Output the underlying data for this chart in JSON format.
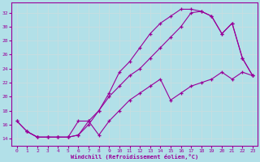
{
  "xlabel": "Windchill (Refroidissement éolien,°C)",
  "bg_color": "#b2e0e8",
  "grid_color": "#c8dde0",
  "line_color": "#990099",
  "xlim": [
    -0.5,
    23.5
  ],
  "ylim": [
    13.0,
    33.5
  ],
  "xticks": [
    0,
    1,
    2,
    3,
    4,
    5,
    6,
    7,
    8,
    9,
    10,
    11,
    12,
    13,
    14,
    15,
    16,
    17,
    18,
    19,
    20,
    21,
    22,
    23
  ],
  "yticks": [
    14,
    16,
    18,
    20,
    22,
    24,
    26,
    28,
    30,
    32
  ],
  "line1_x": [
    0,
    1,
    2,
    3,
    4,
    5,
    6,
    7,
    8,
    9,
    10,
    11,
    12,
    13,
    14,
    15,
    16,
    17,
    18,
    19,
    20,
    21,
    22,
    23
  ],
  "line1_y": [
    16.5,
    15.0,
    14.2,
    14.2,
    14.2,
    14.2,
    16.5,
    16.5,
    18.0,
    20.5,
    23.5,
    25.0,
    27.0,
    29.0,
    30.5,
    31.5,
    32.5,
    32.5,
    32.2,
    31.5,
    29.0,
    30.5,
    25.5,
    23.0
  ],
  "line2_x": [
    0,
    1,
    2,
    3,
    4,
    5,
    6,
    7,
    8,
    9,
    10,
    11,
    12,
    13,
    14,
    15,
    16,
    17,
    18,
    19,
    20,
    21,
    22,
    23
  ],
  "line2_y": [
    16.5,
    15.0,
    14.2,
    14.2,
    14.2,
    14.2,
    14.5,
    16.0,
    18.0,
    20.0,
    21.5,
    23.0,
    24.0,
    25.5,
    27.0,
    28.5,
    30.0,
    32.0,
    32.2,
    31.5,
    29.0,
    30.5,
    25.5,
    23.0
  ],
  "line3_x": [
    1,
    2,
    3,
    4,
    5,
    6,
    7,
    8,
    9,
    10,
    11,
    12,
    13,
    14,
    15,
    16,
    17,
    18,
    19,
    20,
    21,
    22,
    23
  ],
  "line3_y": [
    15.0,
    14.2,
    14.2,
    14.2,
    14.2,
    14.5,
    16.5,
    14.5,
    16.5,
    18.0,
    19.5,
    20.5,
    21.5,
    22.5,
    19.5,
    20.5,
    21.5,
    22.0,
    22.5,
    23.5,
    22.5,
    23.5,
    23.0
  ]
}
